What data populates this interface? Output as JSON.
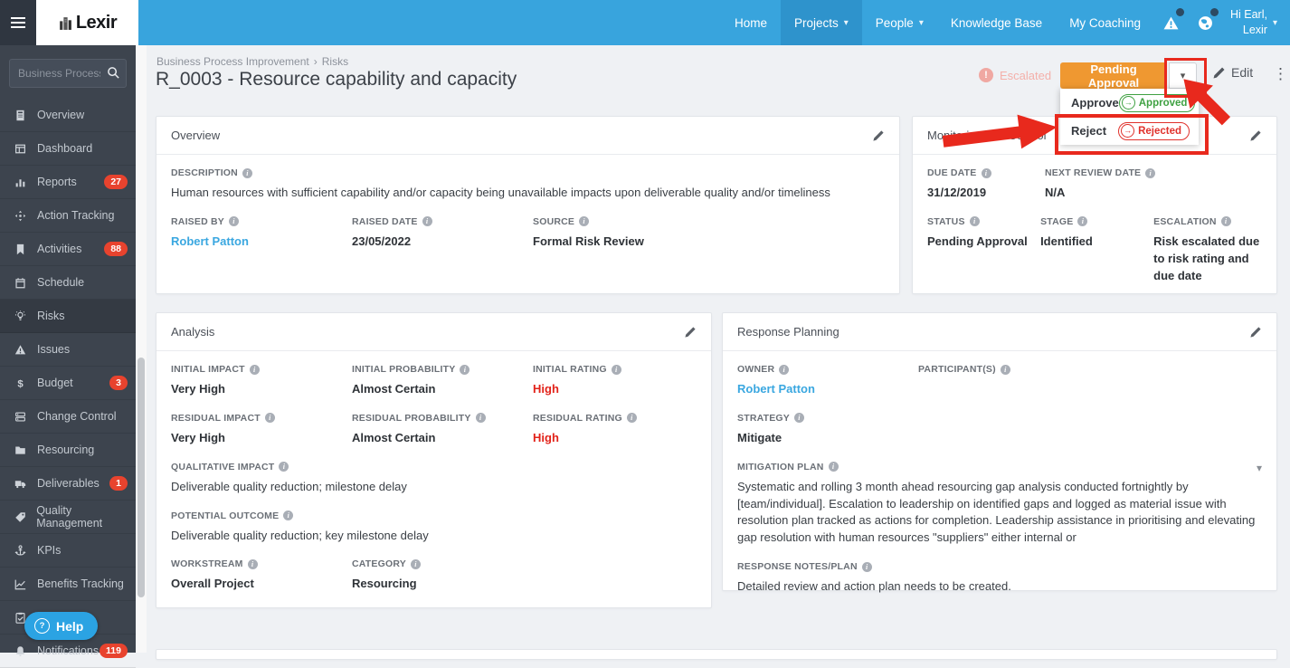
{
  "navbar": {
    "brand": "Lexir",
    "items": [
      {
        "label": "Home",
        "caret": false,
        "active": false
      },
      {
        "label": "Projects",
        "caret": true,
        "active": true
      },
      {
        "label": "People",
        "caret": true,
        "active": false
      },
      {
        "label": "Knowledge Base",
        "caret": false,
        "active": false
      },
      {
        "label": "My Coaching",
        "caret": false,
        "active": false
      }
    ],
    "alert_icons": [
      "alert-triangle-icon",
      "globe-icon"
    ],
    "user": {
      "greeting": "Hi Earl,",
      "org": "Lexir"
    }
  },
  "sidebar": {
    "search_placeholder": "Business Process I...",
    "items": [
      {
        "label": "Overview",
        "icon": "overview",
        "badge": null,
        "active": false
      },
      {
        "label": "Dashboard",
        "icon": "dashboard",
        "badge": null,
        "active": false
      },
      {
        "label": "Reports",
        "icon": "reports",
        "badge": "27",
        "active": false
      },
      {
        "label": "Action Tracking",
        "icon": "action-tracking",
        "badge": null,
        "active": false
      },
      {
        "label": "Activities",
        "icon": "activities",
        "badge": "88",
        "active": false
      },
      {
        "label": "Schedule",
        "icon": "schedule",
        "badge": null,
        "active": false
      },
      {
        "label": "Risks",
        "icon": "risks",
        "badge": null,
        "active": true
      },
      {
        "label": "Issues",
        "icon": "issues",
        "badge": null,
        "active": false
      },
      {
        "label": "Budget",
        "icon": "budget",
        "badge": "3",
        "active": false
      },
      {
        "label": "Change Control",
        "icon": "change-control",
        "badge": null,
        "active": false
      },
      {
        "label": "Resourcing",
        "icon": "resourcing",
        "badge": null,
        "active": false
      },
      {
        "label": "Deliverables",
        "icon": "deliverables",
        "badge": "1",
        "active": false
      },
      {
        "label": "Quality Management",
        "icon": "quality-management",
        "badge": null,
        "active": false
      },
      {
        "label": "KPIs",
        "icon": "kpis",
        "badge": null,
        "active": false
      },
      {
        "label": "Benefits Tracking",
        "icon": "benefits-tracking",
        "badge": null,
        "active": false
      },
      {
        "label": "Approvals",
        "icon": "approvals",
        "badge": null,
        "active": false
      },
      {
        "label": "Notifications",
        "icon": "notifications",
        "badge": "119",
        "active": false
      }
    ],
    "help_label": "Help"
  },
  "header": {
    "breadcrumb": [
      "Business Process Improvement",
      "Risks"
    ],
    "breadcrumb_separator": "›",
    "title": "R_0003 - Resource capability and capacity",
    "escalated_label": "Escalated",
    "status_button_label": "Pending Approval",
    "edit_label": "Edit"
  },
  "status_menu": {
    "items": [
      {
        "action": "Approve",
        "result": "Approved",
        "color": "#3fa142"
      },
      {
        "action": "Reject",
        "result": "Rejected",
        "color": "#e0312b"
      }
    ]
  },
  "cards": {
    "overview": {
      "title": "Overview",
      "description": {
        "label": "DESCRIPTION",
        "value": "Human resources with sufficient capability and/or capacity being unavailable impacts upon deliverable quality and/or timeliness"
      },
      "raised_by": {
        "label": "RAISED BY",
        "value": "Robert Patton"
      },
      "raised_date": {
        "label": "RAISED DATE",
        "value": "23/05/2022"
      },
      "source": {
        "label": "SOURCE",
        "value": "Formal Risk Review"
      }
    },
    "monitoring": {
      "title": "Monitoring and Control",
      "due_date": {
        "label": "DUE DATE",
        "value": "31/12/2019"
      },
      "next_review_date": {
        "label": "NEXT REVIEW DATE",
        "value": "N/A"
      },
      "status": {
        "label": "STATUS",
        "value": "Pending Approval"
      },
      "stage": {
        "label": "STAGE",
        "value": "Identified"
      },
      "escalation": {
        "label": "ESCALATION",
        "value": "Risk escalated due to risk rating and due date"
      }
    },
    "analysis": {
      "title": "Analysis",
      "initial_impact": {
        "label": "INITIAL IMPACT",
        "value": "Very High"
      },
      "initial_probability": {
        "label": "INITIAL PROBABILITY",
        "value": "Almost Certain"
      },
      "initial_rating": {
        "label": "INITIAL RATING",
        "value": "High"
      },
      "residual_impact": {
        "label": "RESIDUAL IMPACT",
        "value": "Very High"
      },
      "residual_probability": {
        "label": "RESIDUAL PROBABILITY",
        "value": "Almost Certain"
      },
      "residual_rating": {
        "label": "RESIDUAL RATING",
        "value": "High"
      },
      "qualitative_impact": {
        "label": "QUALITATIVE IMPACT",
        "value": "Deliverable quality reduction; milestone delay"
      },
      "potential_outcome": {
        "label": "POTENTIAL OUTCOME",
        "value": "Deliverable quality reduction; key milestone delay"
      },
      "workstream": {
        "label": "WORKSTREAM",
        "value": "Overall Project"
      },
      "category": {
        "label": "CATEGORY",
        "value": "Resourcing"
      }
    },
    "response": {
      "title": "Response Planning",
      "owner": {
        "label": "OWNER",
        "value": "Robert Patton"
      },
      "participants": {
        "label": "PARTICIPANT(S)",
        "value": ""
      },
      "strategy": {
        "label": "STRATEGY",
        "value": "Mitigate"
      },
      "mitigation_plan": {
        "label": "MITIGATION PLAN",
        "value": "Systematic and rolling 3 month ahead resourcing gap analysis conducted fortnightly by [team/individual]. Escalation to leadership on identified gaps and logged as material issue with resolution plan tracked as actions for completion. Leadership assistance in prioritising and elevating gap resolution with human resources \"suppliers\" either internal or"
      },
      "response_notes": {
        "label": "RESPONSE NOTES/PLAN",
        "value": "Detailed review and action plan needs to be created."
      }
    }
  },
  "colors": {
    "navbar_blue": "#38a4dd",
    "sidebar_dark": "#3d444e",
    "status_orange": "#ef9831",
    "annotation_red": "#e8291d",
    "badge_red": "#e8432e",
    "link_blue": "#3aa7e0",
    "rating_red": "#e2231a",
    "approve_green": "#3fa142",
    "reject_red": "#e0312b"
  }
}
